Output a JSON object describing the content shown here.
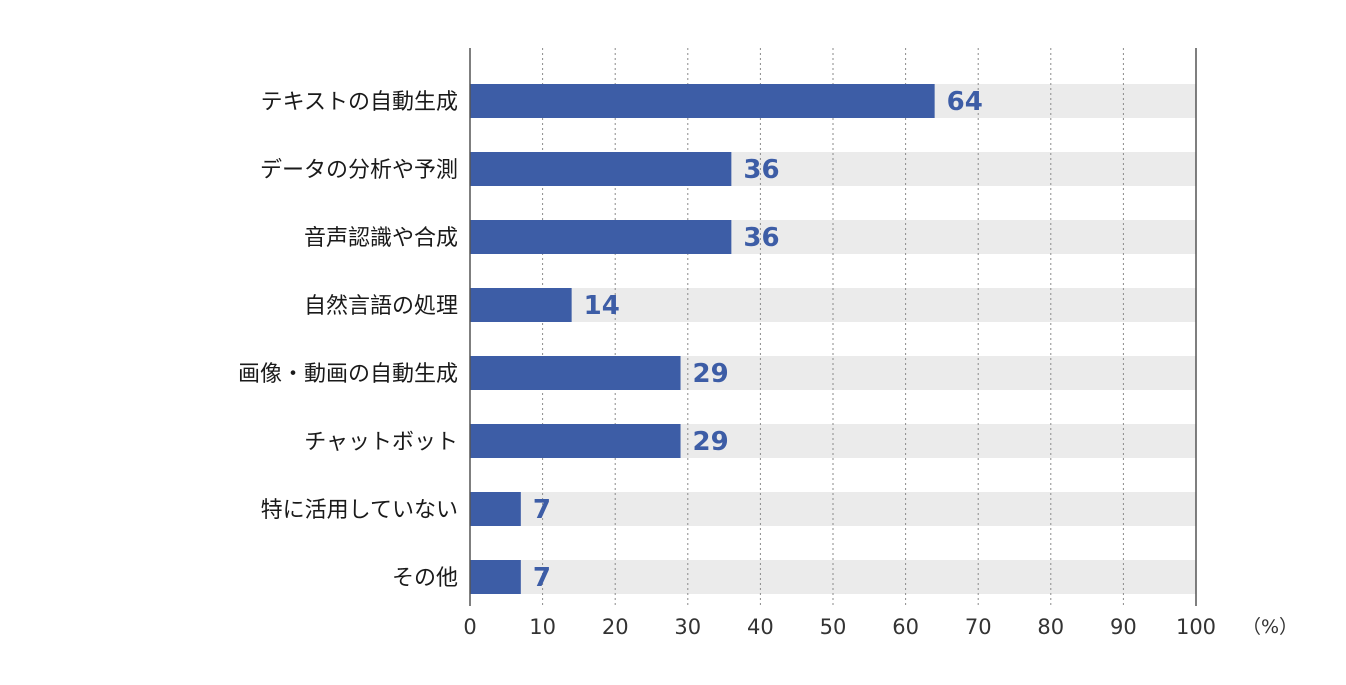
{
  "chart_data": {
    "type": "bar",
    "orientation": "horizontal",
    "categories": [
      "テキストの自動生成",
      "データの分析や予測",
      "音声認識や合成",
      "自然言語の処理",
      "画像・動画の自動生成",
      "チャットボット",
      "特に活用していない",
      "その他"
    ],
    "values": [
      64,
      36,
      36,
      14,
      29,
      29,
      7,
      7
    ],
    "value_labels": [
      "64",
      "36",
      "36",
      "14",
      "29",
      "29",
      "7",
      "7"
    ],
    "xlim": [
      0,
      100
    ],
    "xticks": [
      "0",
      "10",
      "20",
      "30",
      "40",
      "50",
      "60",
      "70",
      "80",
      "90",
      "100"
    ],
    "unit": "（%）",
    "grid": "vertical dotted",
    "colors": {
      "bar": "#3d5da6",
      "track": "#ebebeb",
      "value_text": "#3d5da6"
    }
  }
}
